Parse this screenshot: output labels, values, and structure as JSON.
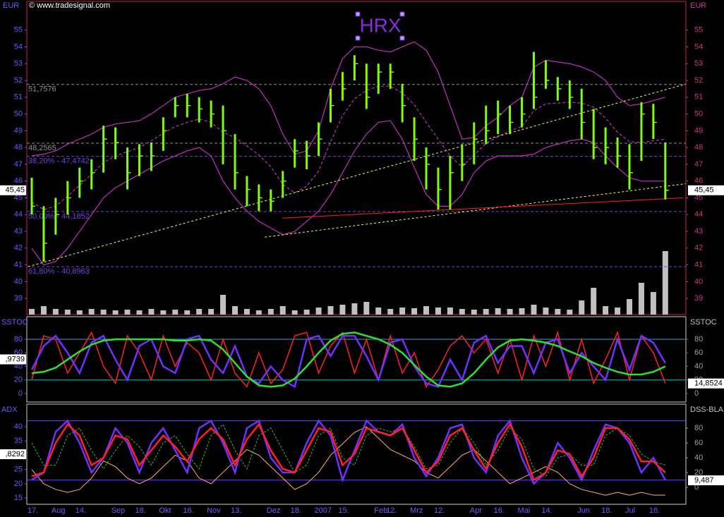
{
  "chart_data": [
    {
      "type": "hlc",
      "title": "HRX",
      "watermark": "© www.tradesignal.com",
      "y_label": "EUR",
      "color": "#7fff00",
      "categories": [
        "17.",
        null,
        "Aug",
        null,
        "14.",
        null,
        null,
        "Sep",
        null,
        "18.",
        null,
        "Okt",
        null,
        "16.",
        null,
        "Nov",
        null,
        "13.",
        null,
        null,
        "Dez",
        null,
        "18.",
        null,
        "2007",
        null,
        "15.",
        null,
        null,
        "Feb",
        "12.",
        null,
        "Mrz",
        null,
        "12.",
        null,
        null,
        "Apr",
        null,
        "16.",
        null,
        "Mai",
        null,
        "14.",
        null,
        null,
        "Jun",
        null,
        "18.",
        null,
        "Jul",
        null,
        "16.",
        null
      ],
      "high": [
        46.2,
        44.5,
        45,
        46,
        46.8,
        47.3,
        49.3,
        49.2,
        48,
        48.2,
        48.3,
        49.8,
        51,
        51.2,
        51,
        50.8,
        50.5,
        48.8,
        46.3,
        45.8,
        45.5,
        46.6,
        48.5,
        48.4,
        49.5,
        51.5,
        52.5,
        53.5,
        53,
        53,
        53,
        51.8,
        49.8,
        48,
        46.8,
        47.5,
        48.2,
        49.5,
        50.5,
        50.8,
        50.5,
        51,
        53.7,
        53.2,
        52.2,
        52,
        51.5,
        50.3,
        49.2,
        48.6,
        48.2,
        50.7,
        50.6,
        48.3
      ],
      "low": [
        44,
        41.2,
        42.8,
        44,
        45,
        45.5,
        46.5,
        47.3,
        45.5,
        46.3,
        46.6,
        47.8,
        49.8,
        49.8,
        49.5,
        49.2,
        47,
        45.5,
        44.5,
        44.2,
        44.2,
        45,
        46.8,
        46.7,
        47.5,
        49.5,
        50.8,
        52,
        50.3,
        51.2,
        51.5,
        49.5,
        47.2,
        45.5,
        44.3,
        44.3,
        46,
        47,
        48.2,
        48.8,
        48.8,
        49.2,
        50.3,
        51.5,
        50.8,
        50.3,
        48.5,
        47.3,
        47,
        46.8,
        45.5,
        47.2,
        48.5,
        44.9
      ],
      "close": [
        44.5,
        42.3,
        44,
        45,
        46,
        46.5,
        48.5,
        48.3,
        46.5,
        47.5,
        47.5,
        49,
        50.5,
        50.5,
        50.3,
        50,
        49,
        46.5,
        45.5,
        45,
        44.8,
        46,
        47.8,
        47.5,
        48.5,
        50.5,
        51.5,
        53,
        51,
        52.5,
        52.5,
        50.5,
        48.5,
        47,
        45.5,
        46.5,
        47,
        48.5,
        49,
        50,
        49.5,
        50,
        51,
        52,
        51.5,
        51,
        49.5,
        48,
        48,
        47.5,
        46.5,
        50,
        49.5,
        45.45
      ],
      "ylim": [
        38.04,
        56.71
      ],
      "yticks": [
        39,
        40,
        41,
        42,
        43,
        44,
        45,
        46,
        47,
        48,
        49,
        50,
        51,
        52,
        53,
        54,
        55
      ],
      "overlays": [
        {
          "color": "#c030c0",
          "dashed": false,
          "values": [
            47.5,
            47.6,
            47.8,
            48.2,
            48.5,
            48.8,
            49.2,
            49.4,
            49.5,
            49.6,
            50,
            50.5,
            51,
            51.2,
            51.4,
            51.5,
            51.8,
            52.2,
            52,
            51.5,
            50.5,
            48.8,
            47.6,
            47.8,
            49,
            51.5,
            53.3,
            54,
            54,
            53.8,
            53.7,
            54,
            54.3,
            53.8,
            52.5,
            50.5,
            48.5,
            48.6,
            49.3,
            49.8,
            50.5,
            51,
            52.8,
            53.2,
            53.1,
            53,
            52.8,
            52.5,
            52,
            51,
            50.5,
            50.6,
            50.8,
            51
          ]
        },
        {
          "color": "#c030c0",
          "dashed": true,
          "values": [
            44.75,
            44.3,
            44.5,
            45.1,
            45.75,
            46.4,
            47.1,
            47.5,
            47.75,
            48,
            48.4,
            48.85,
            49.25,
            49.5,
            49.7,
            49.5,
            48.9,
            48.6,
            48.1,
            47.55,
            46.85,
            45.8,
            45.3,
            45.7,
            46.6,
            48.35,
            49.9,
            50.9,
            51.4,
            51.65,
            51.65,
            51.25,
            50.55,
            49.5,
            48.5,
            47.5,
            46.85,
            47.55,
            48.25,
            48.65,
            49,
            49.25,
            50.2,
            50.6,
            50.65,
            50.7,
            50.65,
            50.4,
            49.75,
            48.9,
            48.35,
            48.3,
            48.4,
            48.5
          ]
        },
        {
          "color": "#c030c0",
          "dashed": false,
          "values": [
            42,
            41,
            41.2,
            42,
            43,
            44,
            45,
            45.6,
            46,
            46.4,
            46.8,
            47.2,
            47.5,
            47.8,
            48,
            47.5,
            46,
            45,
            44.2,
            43.6,
            43.2,
            42.8,
            43,
            43.6,
            44.2,
            45.2,
            46.5,
            47.8,
            48.8,
            49.5,
            49.6,
            48.5,
            46.8,
            45.2,
            44.5,
            44.5,
            45.2,
            46.5,
            47.2,
            47.5,
            47.5,
            47.5,
            47.6,
            48,
            48.2,
            48.4,
            48.5,
            48.3,
            47.5,
            46.8,
            46.2,
            46,
            46,
            46
          ]
        }
      ],
      "levels": [
        {
          "value": 51.7576,
          "label": "51,7576",
          "color": "#909090"
        },
        {
          "value": 48.2565,
          "label": "48,2565",
          "color": "#909090"
        },
        {
          "value": 47.4742,
          "label": "38,20% - 47,4742",
          "color": "#7040e0"
        },
        {
          "value": 44.1852,
          "label": "50,00% - 44,1852",
          "color": "#7040e0"
        },
        {
          "value": 40.8963,
          "label": "61,80% - 40,8963",
          "color": "#7040e0"
        }
      ],
      "trendlines": [
        {
          "color": "#ffff40",
          "dashed": true,
          "x": [
            -0.3,
            54.7
          ],
          "y": [
            40.9,
            51.78
          ]
        },
        {
          "color": "#ffff40",
          "dashed": true,
          "x": [
            19.5,
            54.7
          ],
          "y": [
            42.66,
            45.84
          ]
        },
        {
          "color": "#ff2020",
          "dashed": false,
          "x": [
            20.96,
            54.5
          ],
          "y": [
            43.79,
            45.0
          ]
        }
      ],
      "last": {
        "value": 45.45,
        "label": "45,45"
      },
      "volume": {
        "color": "#c0c0c0",
        "values": [
          8,
          12,
          8,
          7,
          6,
          8,
          7,
          6,
          7,
          6,
          8,
          6,
          7,
          6,
          8,
          8,
          28,
          12,
          8,
          6,
          8,
          12,
          6,
          7,
          10,
          12,
          14,
          16,
          18,
          10,
          8,
          10,
          9,
          12,
          10,
          10,
          8,
          7,
          8,
          9,
          8,
          9,
          14,
          10,
          8,
          7,
          20,
          38,
          12,
          10,
          22,
          45,
          32,
          90
        ]
      }
    },
    {
      "type": "line",
      "y_label": "SSTOC",
      "y2_label": "SSTOC",
      "ylim": [
        -12.5,
        113.2
      ],
      "yticks": [
        0,
        20,
        40,
        60,
        80
      ],
      "hlines": [
        {
          "value": 80,
          "color": "#40a0d0"
        },
        {
          "value": 20,
          "color": "#00c0c0"
        }
      ],
      "left_badge": ",9739",
      "right_badge": {
        "value": 14.8524,
        "label": "14,8524"
      },
      "series": [
        {
          "color": "#ff2020",
          "width": 1.5,
          "values": [
            20,
            85,
            80,
            30,
            60,
            90,
            40,
            15,
            85,
            60,
            20,
            85,
            40,
            75,
            60,
            20,
            80,
            30,
            10,
            60,
            15,
            35,
            85,
            90,
            30,
            70,
            90,
            30,
            80,
            20,
            85,
            30,
            60,
            10,
            35,
            70,
            85,
            60,
            80,
            30,
            80,
            20,
            85,
            40,
            90,
            20,
            80,
            15,
            50,
            90,
            20,
            85,
            60,
            15
          ]
        },
        {
          "color": "#7030ff",
          "width": 2.5,
          "values": [
            35,
            70,
            85,
            60,
            30,
            75,
            85,
            50,
            20,
            70,
            80,
            40,
            30,
            80,
            85,
            50,
            30,
            70,
            25,
            15,
            40,
            20,
            10,
            80,
            85,
            55,
            85,
            85,
            55,
            20,
            75,
            80,
            40,
            15,
            10,
            50,
            20,
            75,
            85,
            45,
            70,
            70,
            30,
            75,
            80,
            30,
            60,
            40,
            20,
            80,
            35,
            85,
            75,
            45
          ]
        },
        {
          "color": "#30e030",
          "width": 2.5,
          "values": [
            30,
            32,
            38,
            50,
            62,
            72,
            78,
            80,
            80,
            80,
            80,
            80,
            78,
            78,
            80,
            78,
            65,
            45,
            25,
            12,
            10,
            12,
            22,
            40,
            60,
            78,
            88,
            90,
            85,
            80,
            72,
            60,
            42,
            25,
            12,
            10,
            15,
            30,
            50,
            68,
            78,
            80,
            78,
            75,
            70,
            62,
            55,
            45,
            38,
            32,
            28,
            28,
            32,
            40
          ]
        }
      ]
    },
    {
      "type": "line",
      "y_label": "ADX",
      "y2_label": "DSS-BLAU",
      "ylim": [
        12.8,
        47.9
      ],
      "yticks": [
        15,
        20,
        25,
        30,
        35,
        40
      ],
      "y2lim": [
        -22.9,
        112.4
      ],
      "y2ticks": [
        0,
        20,
        40,
        60,
        80
      ],
      "hlines": [
        {
          "value": 90,
          "color": "#7030ff",
          "axis": "y2"
        },
        {
          "value": 10,
          "color": "#7030ff",
          "axis": "y2"
        }
      ],
      "left_badge": ",8292",
      "right_badge": {
        "value": 9.487,
        "label": "9,487",
        "axis": "y2"
      },
      "series": [
        {
          "color": "#ffb070",
          "width": 1,
          "axis": "y",
          "values": [
            25,
            20,
            18,
            17,
            18,
            22,
            28,
            26,
            22,
            20,
            22,
            26,
            30,
            28,
            22,
            20,
            24,
            28,
            32,
            30,
            26,
            22,
            18,
            20,
            24,
            30,
            34,
            38,
            40,
            36,
            32,
            30,
            28,
            24,
            22,
            26,
            30,
            32,
            28,
            24,
            20,
            22,
            24,
            26,
            24,
            20,
            18,
            17,
            16,
            17,
            16,
            17,
            16,
            16
          ]
        },
        {
          "color": "#30c030",
          "width": 1,
          "dashed": true,
          "axis": "y2",
          "values": [
            60,
            30,
            30,
            70,
            80,
            50,
            25,
            50,
            70,
            55,
            30,
            60,
            70,
            45,
            25,
            70,
            85,
            50,
            25,
            70,
            80,
            50,
            20,
            30,
            70,
            80,
            40,
            30,
            70,
            80,
            75,
            80,
            55,
            25,
            30,
            60,
            80,
            60,
            30,
            50,
            80,
            65,
            25,
            15,
            40,
            45,
            30,
            30,
            70,
            80,
            70,
            45,
            35,
            30
          ]
        },
        {
          "color": "#7030ff",
          "width": 2.5,
          "axis": "y2",
          "values": [
            10,
            20,
            75,
            90,
            60,
            20,
            40,
            80,
            60,
            20,
            60,
            80,
            50,
            20,
            80,
            90,
            60,
            20,
            80,
            90,
            40,
            20,
            20,
            60,
            90,
            70,
            10,
            50,
            90,
            75,
            70,
            85,
            40,
            15,
            40,
            80,
            85,
            40,
            20,
            70,
            90,
            40,
            5,
            20,
            60,
            40,
            10,
            50,
            85,
            80,
            60,
            20,
            40,
            10
          ]
        },
        {
          "color": "#ff2020",
          "width": 2.5,
          "axis": "y2",
          "values": [
            15,
            20,
            60,
            85,
            70,
            30,
            40,
            70,
            65,
            30,
            50,
            70,
            55,
            35,
            65,
            80,
            65,
            30,
            65,
            85,
            50,
            25,
            20,
            50,
            80,
            75,
            30,
            45,
            80,
            75,
            70,
            80,
            50,
            20,
            35,
            70,
            80,
            50,
            25,
            60,
            85,
            55,
            10,
            20,
            50,
            45,
            15,
            40,
            80,
            80,
            65,
            35,
            35,
            20
          ]
        }
      ]
    }
  ]
}
